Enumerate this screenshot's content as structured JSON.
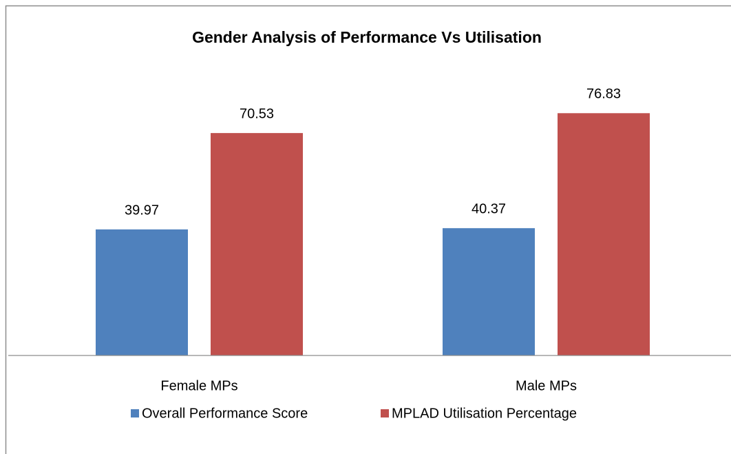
{
  "chart_data": {
    "type": "bar",
    "title": "Gender Analysis of Performance Vs Utilisation",
    "categories": [
      "Female MPs",
      "Male MPs"
    ],
    "series": [
      {
        "name": "Overall Performance Score",
        "color": "#4f81bd",
        "values": [
          39.97,
          40.37
        ]
      },
      {
        "name": "MPLAD Utilisation Percentage",
        "color": "#c0504d",
        "values": [
          70.53,
          76.83
        ]
      }
    ],
    "ylim": [
      0,
      90
    ],
    "legend": "bottom"
  }
}
